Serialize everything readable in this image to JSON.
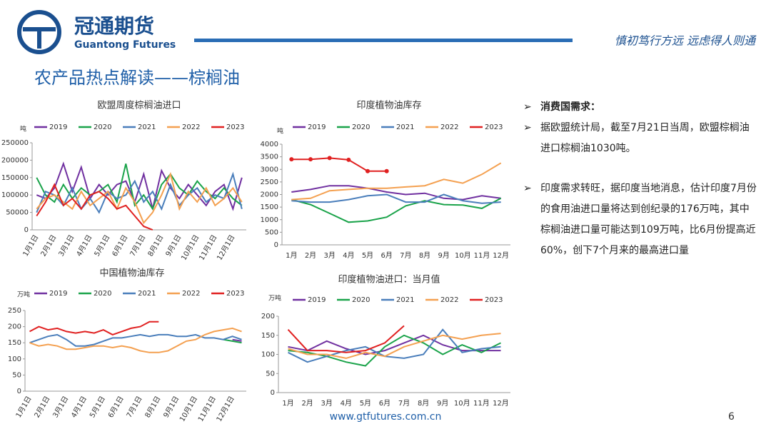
{
  "header": {
    "company": "冠通期货",
    "company_en": "Guantong Futures",
    "slogan": "慎初笃行方远  远虑得人则通"
  },
  "title": "农产品热点解读——棕榈油",
  "chart_data": [
    {
      "type": "line",
      "title": "欧盟周度棕榈油进口",
      "unit": "吨",
      "categories": [
        "1月1日",
        null,
        "2月1日",
        null,
        "3月1日",
        null,
        "4月1日",
        null,
        "5月1日",
        null,
        "6月1日",
        null,
        "7月1日",
        null,
        "8月1日",
        null,
        "9月1日",
        null,
        "10月1日",
        null,
        "11月1日",
        null,
        "12月1日",
        null
      ],
      "ylim": [
        0,
        250000
      ],
      "yticks": [
        0,
        50000,
        100000,
        150000,
        200000,
        250000
      ],
      "series": [
        {
          "name": "2019",
          "color": "#7030a0",
          "values": [
            100000,
            90000,
            120000,
            190000,
            110000,
            180000,
            90000,
            130000,
            100000,
            130000,
            140000,
            80000,
            160000,
            60000,
            170000,
            120000,
            90000,
            130000,
            100000,
            70000,
            110000,
            130000,
            60000,
            150000
          ]
        },
        {
          "name": "2020",
          "color": "#1aa34a",
          "values": [
            150000,
            100000,
            80000,
            130000,
            90000,
            120000,
            100000,
            110000,
            130000,
            80000,
            190000,
            70000,
            100000,
            60000,
            130000,
            160000,
            120000,
            100000,
            140000,
            110000,
            90000,
            120000,
            90000,
            70000
          ]
        },
        {
          "name": "2021",
          "color": "#4a7ebb",
          "values": [
            50000,
            110000,
            100000,
            70000,
            120000,
            60000,
            90000,
            50000,
            110000,
            90000,
            100000,
            140000,
            80000,
            110000,
            60000,
            130000,
            70000,
            100000,
            120000,
            80000,
            100000,
            90000,
            160000,
            60000
          ]
        },
        {
          "name": "2022",
          "color": "#f4a050",
          "values": [
            60000,
            90000,
            100000,
            80000,
            60000,
            110000,
            70000,
            90000,
            110000,
            60000,
            120000,
            80000,
            20000,
            50000,
            100000,
            160000,
            60000,
            110000,
            80000,
            120000,
            70000,
            90000,
            120000,
            80000
          ]
        },
        {
          "name": "2023",
          "color": "#e02020",
          "values": [
            40000,
            80000,
            130000,
            70000,
            90000,
            60000,
            100000,
            110000,
            90000,
            60000,
            70000,
            40000,
            10000,
            0,
            null,
            null,
            null,
            null,
            null,
            null,
            null,
            null,
            null,
            null
          ]
        }
      ]
    },
    {
      "type": "line",
      "title": "印度植物油库存",
      "unit": "吨",
      "categories": [
        "1月",
        "2月",
        "3月",
        "4月",
        "5月",
        "6月",
        "7月",
        "8月",
        "9月",
        "10月",
        "11月",
        "12月"
      ],
      "ylim": [
        0,
        4000
      ],
      "yticks": [
        0,
        500,
        1000,
        1500,
        2000,
        2500,
        3000,
        3500,
        4000
      ],
      "series": [
        {
          "name": "2019",
          "color": "#7030a0",
          "values": [
            2100,
            2200,
            2350,
            2350,
            2250,
            2100,
            2000,
            2050,
            1850,
            1800,
            1950,
            1850
          ]
        },
        {
          "name": "2020",
          "color": "#1aa34a",
          "values": [
            1800,
            1600,
            1250,
            900,
            950,
            1100,
            1550,
            1750,
            1600,
            1580,
            1450,
            1850
          ]
        },
        {
          "name": "2021",
          "color": "#4a7ebb",
          "values": [
            1750,
            1700,
            1700,
            1800,
            1950,
            2000,
            1700,
            1700,
            2000,
            1750,
            1650,
            1700
          ]
        },
        {
          "name": "2022",
          "color": "#f4a050",
          "values": [
            1800,
            1850,
            2150,
            2200,
            2250,
            2250,
            2300,
            2350,
            2600,
            2450,
            2800,
            3250
          ]
        },
        {
          "name": "2023",
          "color": "#e02020",
          "marker": true,
          "values": [
            3400,
            3400,
            3450,
            3380,
            2930,
            2930,
            null,
            null,
            null,
            null,
            null,
            null
          ]
        }
      ]
    },
    {
      "type": "line",
      "title": "中国植物油库存",
      "unit": "万吨",
      "categories": [
        "1月1日",
        null,
        "2月1日",
        null,
        "3月1日",
        null,
        "4月1日",
        null,
        "5月1日",
        null,
        "6月1日",
        null,
        "7月1日",
        null,
        "8月1日",
        null,
        "9月1日",
        null,
        "10月1日",
        null,
        "11月1日",
        null,
        "12月1日",
        null
      ],
      "ylim": [
        0,
        250
      ],
      "yticks": [
        0,
        50,
        100,
        150,
        200,
        250
      ],
      "series": [
        {
          "name": "2019",
          "color": "#7030a0",
          "values": [
            null,
            null,
            null,
            null,
            null,
            null,
            null,
            null,
            null,
            null,
            null,
            null,
            null,
            null,
            null,
            null,
            null,
            null,
            null,
            null,
            null,
            null,
            160,
            155
          ]
        },
        {
          "name": "2020",
          "color": "#1aa34a",
          "values": [
            null,
            null,
            null,
            null,
            null,
            null,
            null,
            null,
            null,
            null,
            null,
            null,
            null,
            null,
            null,
            null,
            null,
            null,
            null,
            null,
            null,
            160,
            155,
            150
          ]
        },
        {
          "name": "2021",
          "color": "#4a7ebb",
          "values": [
            150,
            160,
            170,
            175,
            160,
            140,
            140,
            145,
            155,
            165,
            165,
            170,
            175,
            170,
            175,
            175,
            170,
            170,
            175,
            165,
            165,
            160,
            170,
            160
          ]
        },
        {
          "name": "2022",
          "color": "#f4a050",
          "values": [
            150,
            140,
            145,
            140,
            130,
            130,
            135,
            140,
            140,
            135,
            140,
            135,
            125,
            120,
            120,
            125,
            140,
            155,
            160,
            175,
            185,
            190,
            195,
            185
          ]
        },
        {
          "name": "2023",
          "color": "#e02020",
          "values": [
            185,
            200,
            190,
            195,
            185,
            180,
            185,
            180,
            190,
            175,
            185,
            195,
            200,
            215,
            215,
            null,
            null,
            null,
            null,
            null,
            null,
            null,
            null,
            null
          ]
        }
      ]
    },
    {
      "type": "line",
      "title": "印度植物油进口：当月值",
      "unit": "万吨",
      "categories": [
        "1月",
        "2月",
        "3月",
        "4月",
        "5月",
        "6月",
        "7月",
        "8月",
        "9月",
        "10月",
        "11月",
        "12月"
      ],
      "ylim": [
        0,
        200
      ],
      "yticks": [
        0,
        50,
        100,
        150,
        200
      ],
      "series": [
        {
          "name": "2019",
          "color": "#7030a0",
          "values": [
            120,
            110,
            135,
            115,
            100,
            110,
            130,
            150,
            125,
            110,
            110,
            110
          ]
        },
        {
          "name": "2020",
          "color": "#1aa34a",
          "values": [
            110,
            105,
            95,
            80,
            70,
            120,
            150,
            130,
            100,
            125,
            105,
            130
          ]
        },
        {
          "name": "2021",
          "color": "#4a7ebb",
          "values": [
            105,
            80,
            95,
            110,
            120,
            95,
            90,
            100,
            165,
            105,
            115,
            120
          ]
        },
        {
          "name": "2022",
          "color": "#f4a050",
          "values": [
            115,
            100,
            100,
            90,
            105,
            95,
            120,
            135,
            150,
            140,
            150,
            155
          ]
        },
        {
          "name": "2023",
          "color": "#e02020",
          "values": [
            165,
            110,
            110,
            105,
            110,
            130,
            175,
            null,
            null,
            null,
            null,
            null
          ]
        }
      ]
    }
  ],
  "bullets": [
    "消费国需求：",
    "据欧盟统计局，截至7月21日当周，欧盟棕榈油进口棕榈油1030吨。",
    "印度需求转旺，据印度当地消息，估计印度7月份的食用油进口量将达到创纪录的176万吨，其中棕榈油进口量可能达到109万吨，比6月份提高近60%，创下7个月来的最高进口量"
  ],
  "footer": {
    "url": "www.gtfutures.com.cn",
    "page": "6"
  }
}
